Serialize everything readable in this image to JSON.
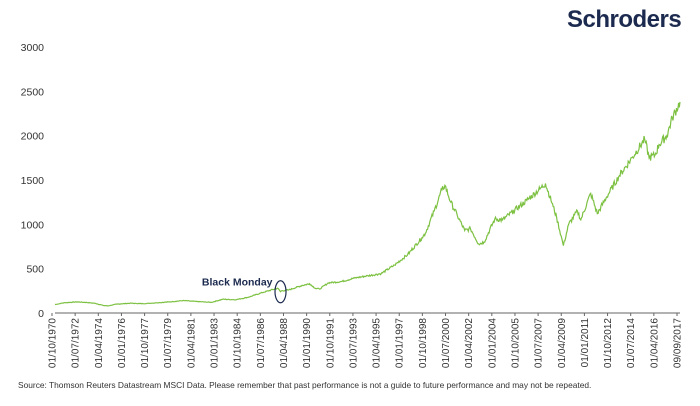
{
  "brand": {
    "name": "Schroders"
  },
  "source_note": "Source: Thomson Reuters Datastream MSCI Data. Please remember that past performance is not a guide to future performance and may not be repeated.",
  "chart_data": {
    "type": "line",
    "title": "",
    "xlabel": "",
    "ylabel": "",
    "ylim": [
      0,
      3000
    ],
    "yticks": [
      0,
      500,
      1000,
      1500,
      2000,
      2500,
      3000
    ],
    "xlim": [
      "1970-10-01",
      "2017-12-31"
    ],
    "xticks": [
      "01/10/1970",
      "01/07/1972",
      "01/04/1974",
      "01/01/1976",
      "01/10/1977",
      "01/07/1979",
      "01/04/1981",
      "01/01/1983",
      "01/10/1984",
      "01/07/1986",
      "01/04/1988",
      "01/01/1990",
      "01/10/1991",
      "01/07/1993",
      "01/04/1995",
      "01/01/1997",
      "01/10/1998",
      "01/07/2000",
      "01/04/2002",
      "01/01/2004",
      "01/10/2005",
      "01/07/2007",
      "01/04/2009",
      "01/01/2011",
      "01/10/2012",
      "01/07/2014",
      "01/04/2016",
      "09/09/2017"
    ],
    "grid": false,
    "legend": "none",
    "line_color": "#7dc142",
    "annotation": {
      "label": "Black Monday",
      "date": "1987-10-19",
      "value": 240,
      "color": "#1b2a4e"
    },
    "series": [
      {
        "x": [
          "1970-10-01",
          "1971-06-01",
          "1972-06-01",
          "1973-01-01",
          "1973-10-01",
          "1974-06-01",
          "1974-09-30",
          "1975-06-01",
          "1976-06-01",
          "1977-06-01",
          "1978-06-01",
          "1979-06-01",
          "1980-06-01",
          "1980-12-01",
          "1981-06-01",
          "1982-08-01",
          "1983-06-01",
          "1984-06-01",
          "1985-06-01",
          "1986-06-01",
          "1987-08-01",
          "1987-10-19",
          "1987-11-15",
          "1988-06-01",
          "1989-06-01",
          "1989-12-31",
          "1990-06-01",
          "1990-10-01",
          "1991-06-01",
          "1992-06-01",
          "1993-06-01",
          "1994-06-01",
          "1995-06-01",
          "1996-06-01",
          "1997-06-01",
          "1998-07-01",
          "1998-10-01",
          "1999-06-01",
          "1999-12-31",
          "2000-03-24",
          "2000-09-01",
          "2001-03-01",
          "2001-09-21",
          "2002-03-01",
          "2002-10-09",
          "2003-03-11",
          "2004-01-01",
          "2004-08-01",
          "2005-06-01",
          "2006-06-01",
          "2007-06-01",
          "2007-10-31",
          "2008-06-01",
          "2008-09-01",
          "2009-03-09",
          "2009-08-01",
          "2010-04-01",
          "2010-07-01",
          "2011-04-01",
          "2011-10-01",
          "2012-06-01",
          "2013-06-01",
          "2014-06-01",
          "2015-05-01",
          "2015-09-01",
          "2016-02-11",
          "2016-06-01",
          "2017-01-01",
          "2017-06-01",
          "2017-12-31"
        ],
        "y": [
          95,
          115,
          125,
          120,
          110,
          85,
          80,
          100,
          110,
          105,
          115,
          125,
          140,
          135,
          130,
          120,
          155,
          150,
          180,
          230,
          280,
          240,
          250,
          260,
          310,
          330,
          280,
          270,
          340,
          355,
          395,
          420,
          445,
          540,
          660,
          850,
          900,
          1150,
          1390,
          1440,
          1250,
          1100,
          930,
          950,
          780,
          800,
          1060,
          1050,
          1150,
          1270,
          1400,
          1460,
          1200,
          1080,
          760,
          1000,
          1150,
          1050,
          1350,
          1120,
          1300,
          1550,
          1760,
          1960,
          1750,
          1780,
          1900,
          2000,
          2200,
          2380
        ]
      }
    ]
  }
}
